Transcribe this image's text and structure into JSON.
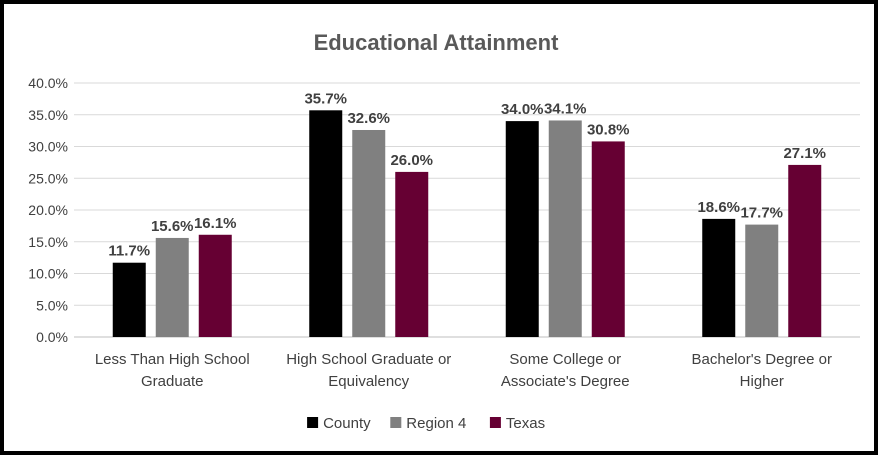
{
  "chart_data": {
    "type": "bar",
    "title": "Educational Attainment",
    "categories": [
      [
        "Less Than High School",
        "Graduate"
      ],
      [
        "High School Graduate or",
        "Equivalency"
      ],
      [
        "Some College or",
        "Associate's Degree"
      ],
      [
        "Bachelor's Degree or",
        "Higher"
      ]
    ],
    "series": [
      {
        "name": "County",
        "color": "#000000",
        "values": [
          11.7,
          35.7,
          34.0,
          18.6
        ],
        "labels": [
          "11.7%",
          "35.7%",
          "34.0%",
          "18.6%"
        ]
      },
      {
        "name": "Region 4",
        "color": "#808080",
        "values": [
          15.6,
          32.6,
          34.1,
          17.7
        ],
        "labels": [
          "15.6%",
          "32.6%",
          "34.1%",
          "17.7%"
        ]
      },
      {
        "name": "Texas",
        "color": "#660033",
        "values": [
          16.1,
          26.0,
          30.8,
          27.1
        ],
        "labels": [
          "16.1%",
          "26.0%",
          "30.8%",
          "27.1%"
        ]
      }
    ],
    "y_ticks": [
      "0.0%",
      "5.0%",
      "10.0%",
      "15.0%",
      "20.0%",
      "25.0%",
      "30.0%",
      "35.0%",
      "40.0%"
    ],
    "ylim": [
      0,
      40
    ],
    "grid": true,
    "legend_position": "bottom"
  }
}
